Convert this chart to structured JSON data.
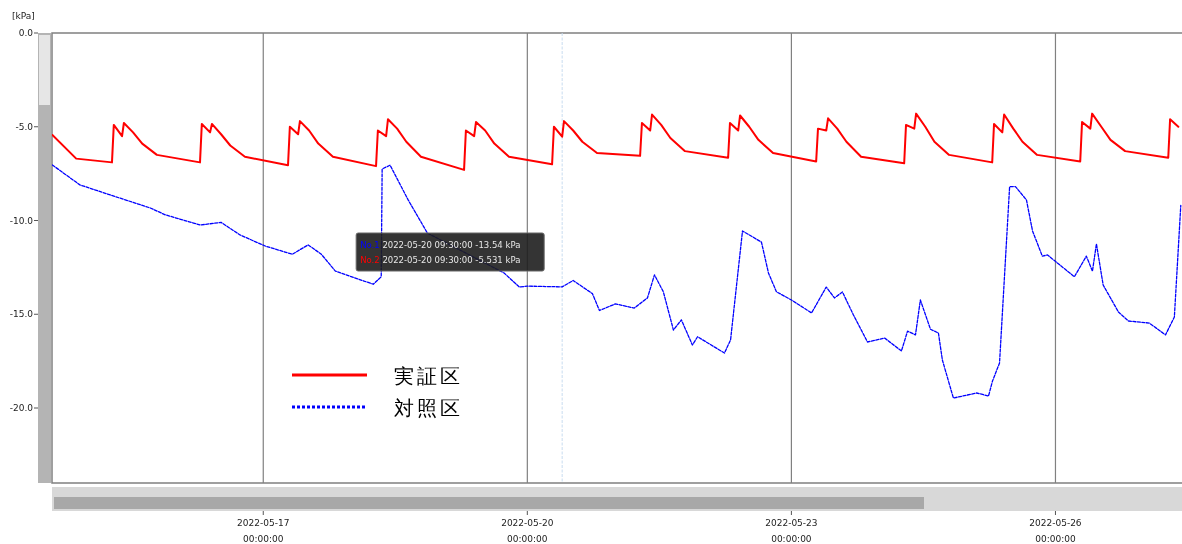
{
  "chart_data": {
    "type": "line",
    "ylabel": "[kPa]",
    "xlim": [
      "2022-05-14T14:24",
      "2022-05-27T10:30"
    ],
    "xticks": [
      {
        "value": "2022-05-17",
        "label": "2022-05-17\n00:00:00"
      },
      {
        "value": "2022-05-20",
        "label": "2022-05-20\n00:00:00"
      },
      {
        "value": "2022-05-23",
        "label": "2022-05-23\n00:00:00"
      },
      {
        "value": "2022-05-26",
        "label": "2022-05-26\n00:00:00"
      }
    ],
    "ylim": [
      -24,
      0
    ],
    "yticks": [
      {
        "value": 0,
        "label": "0.0"
      },
      {
        "value": -5,
        "label": "-5.0"
      },
      {
        "value": -10,
        "label": "-10.0"
      },
      {
        "value": -15,
        "label": "-15.0"
      },
      {
        "value": -20,
        "label": "-20.0"
      }
    ],
    "grid": "x",
    "legend": "bottom left",
    "series": [
      {
        "name": "実証区",
        "color": "#ff0000",
        "line_style": "solid",
        "x": [
          "2022-05-14T14:30",
          "2022-05-14T21:00",
          "2022-05-15T06:45",
          "2022-05-15T07:15",
          "2022-05-15T09:30",
          "2022-05-15T10:00",
          "2022-05-15T12:30",
          "2022-05-15T15:00",
          "2022-05-15T19:00",
          "2022-05-16T06:45",
          "2022-05-16T07:15",
          "2022-05-16T09:30",
          "2022-05-16T10:00",
          "2022-05-16T12:30",
          "2022-05-16T15:00",
          "2022-05-16T19:00",
          "2022-05-17T06:45",
          "2022-05-17T07:15",
          "2022-05-17T09:30",
          "2022-05-17T10:00",
          "2022-05-17T12:30",
          "2022-05-17T15:00",
          "2022-05-17T19:00",
          "2022-05-18T06:45",
          "2022-05-18T07:15",
          "2022-05-18T09:30",
          "2022-05-18T10:00",
          "2022-05-18T12:30",
          "2022-05-18T15:00",
          "2022-05-18T19:00",
          "2022-05-19T06:45",
          "2022-05-19T07:15",
          "2022-05-19T09:30",
          "2022-05-19T10:00",
          "2022-05-19T12:30",
          "2022-05-19T15:00",
          "2022-05-19T19:00",
          "2022-05-20T06:45",
          "2022-05-20T07:15",
          "2022-05-20T09:30",
          "2022-05-20T10:00",
          "2022-05-20T12:30",
          "2022-05-20T15:00",
          "2022-05-20T19:00",
          "2022-05-21T06:45",
          "2022-05-21T07:15",
          "2022-05-21T09:30",
          "2022-05-21T10:00",
          "2022-05-21T12:30",
          "2022-05-21T15:00",
          "2022-05-21T19:00",
          "2022-05-22T06:45",
          "2022-05-22T07:15",
          "2022-05-22T09:30",
          "2022-05-22T10:00",
          "2022-05-22T12:30",
          "2022-05-22T15:00",
          "2022-05-22T19:00",
          "2022-05-23T06:45",
          "2022-05-23T07:15",
          "2022-05-23T09:30",
          "2022-05-23T10:00",
          "2022-05-23T12:30",
          "2022-05-23T15:00",
          "2022-05-23T19:00",
          "2022-05-24T06:45",
          "2022-05-24T07:15",
          "2022-05-24T09:30",
          "2022-05-24T10:00",
          "2022-05-24T12:30",
          "2022-05-24T15:00",
          "2022-05-24T19:00",
          "2022-05-25T06:45",
          "2022-05-25T07:15",
          "2022-05-25T09:30",
          "2022-05-25T10:00",
          "2022-05-25T12:30",
          "2022-05-25T15:00",
          "2022-05-25T19:00",
          "2022-05-26T06:45",
          "2022-05-26T07:15",
          "2022-05-26T09:30",
          "2022-05-26T10:00",
          "2022-05-26T12:30",
          "2022-05-26T15:00",
          "2022-05-26T19:00",
          "2022-05-27T06:45",
          "2022-05-27T07:15",
          "2022-05-27T09:30"
        ],
        "values": [
          -5.44,
          -6.7,
          -6.9,
          -4.9,
          -5.5,
          -4.8,
          -5.3,
          -5.9,
          -6.5,
          -6.9,
          -4.85,
          -5.3,
          -4.85,
          -5.4,
          -6.0,
          -6.6,
          -7.05,
          -5.0,
          -5.4,
          -4.7,
          -5.2,
          -5.9,
          -6.6,
          -7.1,
          -5.2,
          -5.5,
          -4.6,
          -5.1,
          -5.8,
          -6.6,
          -7.3,
          -5.2,
          -5.5,
          -4.75,
          -5.2,
          -5.9,
          -6.6,
          -7.0,
          -5.0,
          -5.53,
          -4.7,
          -5.2,
          -5.8,
          -6.4,
          -6.55,
          -4.8,
          -5.2,
          -4.35,
          -4.9,
          -5.6,
          -6.3,
          -6.65,
          -4.8,
          -5.2,
          -4.4,
          -5.0,
          -5.7,
          -6.4,
          -6.85,
          -5.1,
          -5.2,
          -4.55,
          -5.1,
          -5.8,
          -6.6,
          -6.95,
          -4.9,
          -5.1,
          -4.3,
          -5.0,
          -5.8,
          -6.5,
          -6.9,
          -4.85,
          -5.3,
          -4.35,
          -5.1,
          -5.8,
          -6.5,
          -6.85,
          -4.75,
          -5.1,
          -4.3,
          -5.0,
          -5.7,
          -6.3,
          -6.65,
          -4.6,
          -5.0
        ]
      },
      {
        "name": "対照区",
        "color": "#0000ff",
        "line_style": "dashed",
        "x": [
          "2022-05-14T14:30",
          "2022-05-14T22:00",
          "2022-05-15T06:20",
          "2022-05-15T17:10",
          "2022-05-15T21:20",
          "2022-05-16T06:50",
          "2022-05-16T12:30",
          "2022-05-16T17:40",
          "2022-05-17T00:30",
          "2022-05-17T07:55",
          "2022-05-17T12:15",
          "2022-05-17T15:50",
          "2022-05-17T19:40",
          "2022-05-18T06:00",
          "2022-05-18T08:10",
          "2022-05-18T08:25",
          "2022-05-18T10:35",
          "2022-05-18T15:30",
          "2022-05-18T20:45",
          "2022-05-19T17:40",
          "2022-05-19T21:50",
          "2022-05-20T00:00",
          "2022-05-20T09:30",
          "2022-05-20T12:30",
          "2022-05-20T17:45",
          "2022-05-20T19:40",
          "2022-05-21T00:00",
          "2022-05-21T05:10",
          "2022-05-21T08:45",
          "2022-05-21T10:40",
          "2022-05-21T13:05",
          "2022-05-21T15:50",
          "2022-05-21T18:00",
          "2022-05-21T21:00",
          "2022-05-21T22:25",
          "2022-05-22T05:45",
          "2022-05-22T07:25",
          "2022-05-22T10:40",
          "2022-05-22T15:50",
          "2022-05-22T17:45",
          "2022-05-22T19:55",
          "2022-05-23T00:00",
          "2022-05-23T05:30",
          "2022-05-23T09:30",
          "2022-05-23T11:45",
          "2022-05-23T13:55",
          "2022-05-23T16:55",
          "2022-05-23T20:45",
          "2022-05-24T01:25",
          "2022-05-24T06:00",
          "2022-05-24T07:40",
          "2022-05-24T09:50",
          "2022-05-24T11:10",
          "2022-05-24T13:55",
          "2022-05-24T16:05",
          "2022-05-24T17:10",
          "2022-05-24T20:10",
          "2022-05-25T02:30",
          "2022-05-25T05:45",
          "2022-05-25T06:50",
          "2022-05-25T08:45",
          "2022-05-25T11:30",
          "2022-05-25T13:05",
          "2022-05-25T16:05",
          "2022-05-25T17:45",
          "2022-05-25T20:25",
          "2022-05-25T21:50",
          "2022-05-26T05:10",
          "2022-05-26T08:25",
          "2022-05-26T10:05",
          "2022-05-26T11:10",
          "2022-05-26T13:00",
          "2022-05-26T17:10",
          "2022-05-26T19:55",
          "2022-05-27T01:35",
          "2022-05-27T06:00",
          "2022-05-27T08:25",
          "2022-05-27T10:10"
        ],
        "values": [
          -7.04,
          -8.1,
          -8.64,
          -9.33,
          -9.7,
          -10.24,
          -10.1,
          -10.77,
          -11.36,
          -11.8,
          -11.3,
          -11.8,
          -12.7,
          -13.4,
          -13.0,
          -7.25,
          -7.05,
          -8.9,
          -10.67,
          -12.8,
          -13.55,
          -13.5,
          -13.54,
          -13.2,
          -13.9,
          -14.8,
          -14.45,
          -14.67,
          -14.13,
          -12.9,
          -13.8,
          -15.84,
          -15.3,
          -16.64,
          -16.2,
          -17.07,
          -16.37,
          -10.56,
          -11.15,
          -12.8,
          -13.8,
          -14.24,
          -14.93,
          -13.55,
          -14.13,
          -13.81,
          -15.04,
          -16.48,
          -16.27,
          -16.96,
          -15.9,
          -16.1,
          -14.24,
          -15.8,
          -16.0,
          -17.44,
          -19.47,
          -19.2,
          -19.36,
          -18.56,
          -17.6,
          -8.19,
          -8.19,
          -8.9,
          -10.56,
          -11.9,
          -11.84,
          -13.0,
          -11.9,
          -12.7,
          -11.25,
          -13.44,
          -14.88,
          -15.36,
          -15.47,
          -16.1,
          -15.15,
          -9.2
        ]
      }
    ],
    "ref_lines": [
      {
        "axis": "x",
        "value": "2022-05-20T09:30",
        "color": "#c8dcf0",
        "line_style": "dashed"
      }
    ],
    "annotations": [
      "No.1 2022-05-20 09:30:00 -13.54 kPa",
      "No.2 2022-05-20 09:30:00 -5.531 kPa"
    ]
  }
}
